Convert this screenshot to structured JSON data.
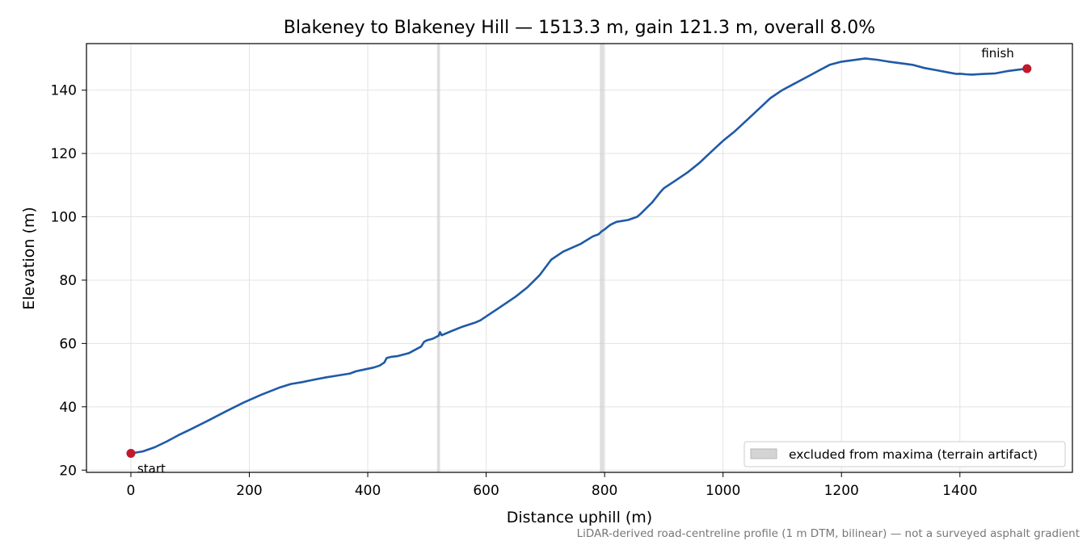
{
  "chart_data": {
    "type": "line",
    "title": "Blakeney to Blakeney Hill — 1513.3 m, gain 121.3 m, overall 8.0%",
    "xlabel": "Distance uphill (m)",
    "ylabel": "Elevation (m)",
    "xlim": [
      -75,
      1590
    ],
    "ylim": [
      19.3,
      154.7
    ],
    "xticks": [
      0,
      200,
      400,
      600,
      800,
      1000,
      1200,
      1400
    ],
    "yticks": [
      20,
      40,
      60,
      80,
      100,
      120,
      140
    ],
    "grid": true,
    "line_color": "#1f5aa6",
    "marker_color": "#c0182c",
    "band_color": "#c8c8c8",
    "series": [
      {
        "x": [
          0,
          20,
          40,
          60,
          80,
          100,
          130,
          160,
          190,
          220,
          250,
          270,
          290,
          310,
          330,
          350,
          370,
          380,
          390,
          410,
          420,
          428,
          432,
          440,
          450,
          470,
          490,
          495,
          500,
          510,
          520,
          522,
          525,
          540,
          560,
          580,
          590,
          620,
          650,
          670,
          690,
          710,
          730,
          760,
          780,
          790,
          795,
          800,
          805,
          810,
          820,
          840,
          855,
          860,
          880,
          895,
          900,
          920,
          940,
          960,
          980,
          1000,
          1020,
          1040,
          1060,
          1080,
          1100,
          1120,
          1140,
          1160,
          1180,
          1200,
          1220,
          1240,
          1260,
          1280,
          1300,
          1320,
          1340,
          1360,
          1380,
          1395,
          1400,
          1410,
          1420,
          1440,
          1460,
          1480,
          1500,
          1513.3
        ],
        "y": [
          25.3,
          25.9,
          27.2,
          29.0,
          31.0,
          32.8,
          35.6,
          38.5,
          41.3,
          43.8,
          46.0,
          47.2,
          47.8,
          48.6,
          49.3,
          49.9,
          50.5,
          51.2,
          51.6,
          52.4,
          53.0,
          54.0,
          55.4,
          55.8,
          56.0,
          57.0,
          59.0,
          60.5,
          61.0,
          61.5,
          62.5,
          63.6,
          62.6,
          63.8,
          65.3,
          66.5,
          67.3,
          71.0,
          74.8,
          77.8,
          81.5,
          86.5,
          89.0,
          91.5,
          93.8,
          94.5,
          95.4,
          96.0,
          96.8,
          97.5,
          98.4,
          99.0,
          100.0,
          100.8,
          104.5,
          108.0,
          109.0,
          111.5,
          114.0,
          117.0,
          120.5,
          124.0,
          127.0,
          130.5,
          134.0,
          137.5,
          140.0,
          142.0,
          144.0,
          146.0,
          148.0,
          149.0,
          149.5,
          150.0,
          149.6,
          149.0,
          148.5,
          148.0,
          147.0,
          146.3,
          145.6,
          145.1,
          145.2,
          145.0,
          144.9,
          145.1,
          145.3,
          146.0,
          146.5,
          146.8
        ]
      }
    ],
    "excluded_bands": [
      [
        517,
        522
      ],
      [
        792,
        799
      ]
    ],
    "start_point": {
      "x": 0,
      "y": 25.3,
      "label": "start"
    },
    "finish_point": {
      "x": 1513.3,
      "y": 146.8,
      "label": "finish"
    },
    "legend": {
      "label": "excluded from maxima (terrain artifact)",
      "position": "lower-right"
    }
  },
  "footnote": "LiDAR-derived road-centreline profile (1 m DTM, bilinear) — not a surveyed asphalt gradient"
}
